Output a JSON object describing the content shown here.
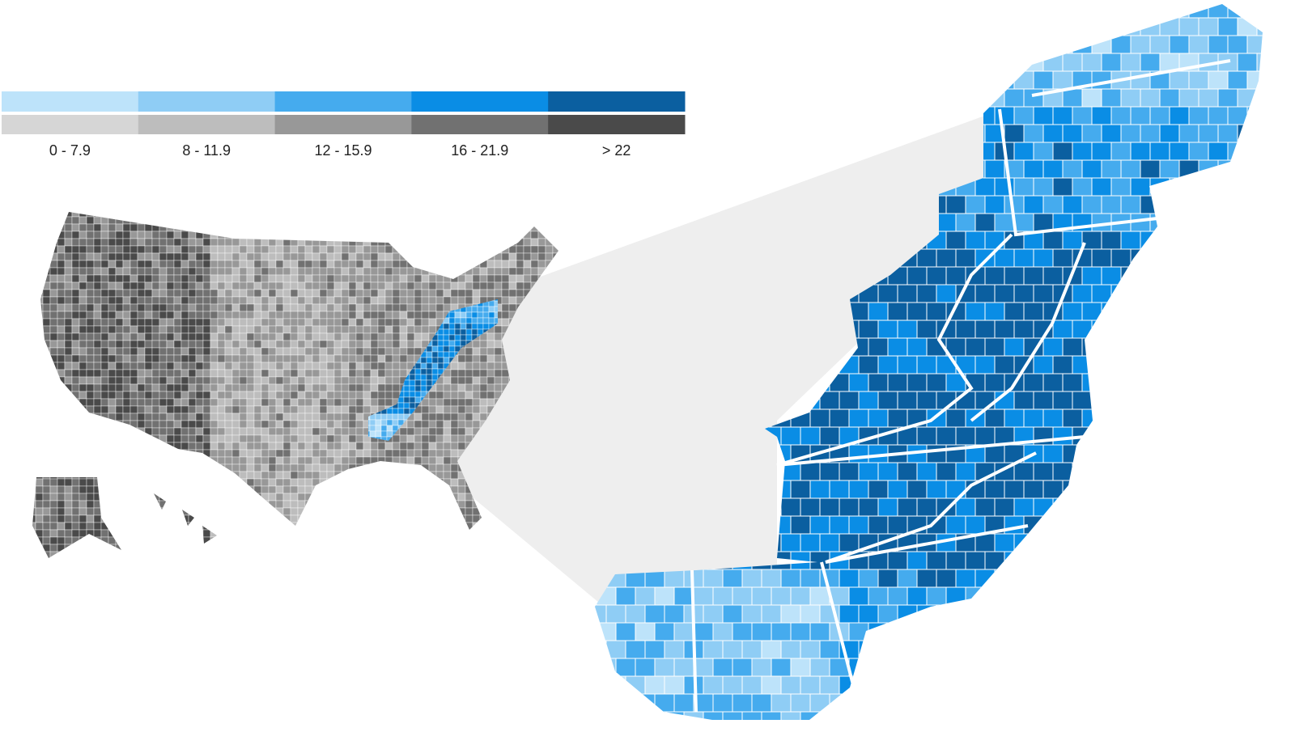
{
  "legend": {
    "items": [
      {
        "label": "0 - 7.9",
        "color": "#bde3fa",
        "gray": "#d6d6d6"
      },
      {
        "label": "8 - 11.9",
        "color": "#8fcdf5",
        "gray": "#bdbdbd"
      },
      {
        "label": "12 - 15.9",
        "color": "#45abee",
        "gray": "#989898"
      },
      {
        "label": "16 - 21.9",
        "color": "#0a8de5",
        "gray": "#717171"
      },
      {
        "label": "> 22",
        "color": "#0b5fa0",
        "gray": "#4a4a4a"
      }
    ]
  }
}
